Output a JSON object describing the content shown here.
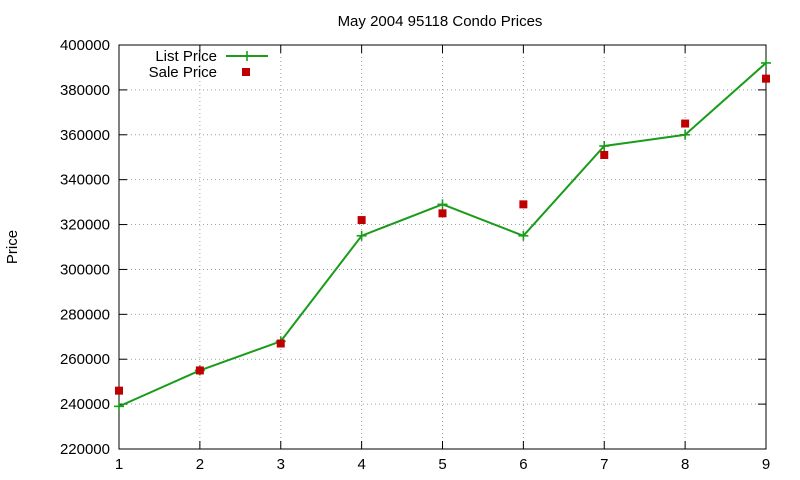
{
  "chart_data": {
    "type": "line",
    "title": "May 2004 95118 Condo Prices",
    "xlabel": "",
    "ylabel": "Price",
    "xlim": [
      1,
      9
    ],
    "ylim": [
      220000,
      400000
    ],
    "x_ticks": [
      "1",
      "2",
      "3",
      "4",
      "5",
      "6",
      "7",
      "8",
      "9"
    ],
    "y_ticks": [
      "220000",
      "240000",
      "260000",
      "280000",
      "300000",
      "320000",
      "340000",
      "360000",
      "380000",
      "400000"
    ],
    "grid": true,
    "legend_position": "top-left",
    "x": [
      1,
      2,
      3,
      4,
      5,
      6,
      7,
      8,
      9
    ],
    "series": [
      {
        "name": "List Price",
        "style": "line-with-plus-markers",
        "color": "#1a9c1a",
        "values": [
          239000,
          255000,
          268000,
          315000,
          329000,
          315000,
          355000,
          360000,
          392000
        ]
      },
      {
        "name": "Sale Price",
        "style": "square-markers",
        "color": "#c00000",
        "values": [
          246000,
          255000,
          267000,
          322000,
          325000,
          329000,
          351000,
          365000,
          385000
        ]
      }
    ]
  }
}
